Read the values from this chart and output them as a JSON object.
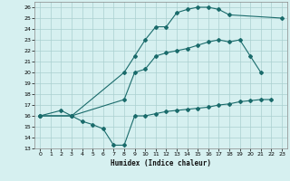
{
  "xlabel": "Humidex (Indice chaleur)",
  "bg_color": "#d6f0f0",
  "grid_color": "#aacfcf",
  "line_color": "#1a6b6b",
  "xlim": [
    -0.5,
    23.5
  ],
  "ylim": [
    13,
    26.5
  ],
  "xticks": [
    0,
    1,
    2,
    3,
    4,
    5,
    6,
    7,
    8,
    9,
    10,
    11,
    12,
    13,
    14,
    15,
    16,
    17,
    18,
    19,
    20,
    21,
    22,
    23
  ],
  "yticks": [
    13,
    14,
    15,
    16,
    17,
    18,
    19,
    20,
    21,
    22,
    23,
    24,
    25,
    26
  ],
  "line1_x": [
    0,
    2,
    3,
    8,
    9,
    10,
    11,
    12,
    13,
    14,
    15,
    16,
    17,
    18,
    23
  ],
  "line1_y": [
    16,
    16.5,
    16.0,
    20.0,
    21.5,
    23.0,
    24.2,
    24.2,
    25.5,
    25.8,
    26.0,
    26.0,
    25.8,
    25.3,
    25.0
  ],
  "line2_x": [
    0,
    3,
    4,
    5,
    6,
    7,
    8,
    9,
    10,
    11,
    12,
    13,
    14,
    15,
    16,
    17,
    18,
    19,
    20,
    21,
    22
  ],
  "line2_y": [
    16,
    16.0,
    15.5,
    15.2,
    14.8,
    13.3,
    13.3,
    16.0,
    16.0,
    16.2,
    16.4,
    16.5,
    16.6,
    16.7,
    16.8,
    17.0,
    17.1,
    17.3,
    17.4,
    17.5,
    17.5
  ],
  "line3_x": [
    0,
    3,
    8,
    9,
    10,
    11,
    12,
    13,
    14,
    15,
    16,
    17,
    18,
    19,
    20,
    21
  ],
  "line3_y": [
    16,
    16.0,
    17.5,
    20.0,
    20.3,
    21.5,
    21.8,
    22.0,
    22.2,
    22.5,
    22.8,
    23.0,
    22.8,
    23.0,
    21.5,
    20.0
  ]
}
